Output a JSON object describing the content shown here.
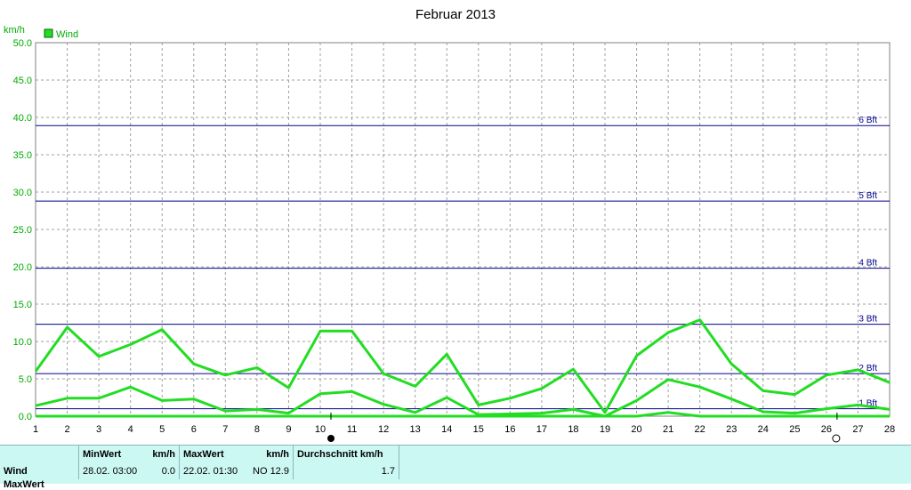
{
  "chart_data": {
    "type": "line",
    "title": "Februar 2013",
    "ylabel": "km/h",
    "ylim": [
      0,
      50
    ],
    "xlim": [
      1,
      28
    ],
    "y_ticks": [
      "0.0",
      "5.0",
      "10.0",
      "15.0",
      "20.0",
      "25.0",
      "30.0",
      "35.0",
      "40.0",
      "45.0",
      "50.0"
    ],
    "x_ticks": [
      "1",
      "2",
      "3",
      "4",
      "5",
      "6",
      "7",
      "8",
      "9",
      "10",
      "11",
      "12",
      "13",
      "14",
      "15",
      "16",
      "17",
      "18",
      "19",
      "20",
      "21",
      "22",
      "23",
      "24",
      "25",
      "26",
      "27",
      "28"
    ],
    "grid": true,
    "legend": {
      "position": "top-left",
      "entries": [
        "Wind"
      ]
    },
    "beaufort_lines": [
      {
        "label": "1 Bft",
        "value": 1.0
      },
      {
        "label": "2 Bft",
        "value": 5.7
      },
      {
        "label": "3 Bft",
        "value": 12.3
      },
      {
        "label": "4 Bft",
        "value": 19.8
      },
      {
        "label": "5 Bft",
        "value": 28.8
      },
      {
        "label": "6 Bft",
        "value": 38.9
      }
    ],
    "series": [
      {
        "role": "max",
        "x": [
          1,
          2,
          3,
          4,
          5,
          6,
          7,
          8,
          9,
          10,
          11,
          12,
          13,
          14,
          15,
          16,
          17,
          18,
          19,
          20,
          21,
          22,
          23,
          24,
          25,
          26,
          27,
          28
        ],
        "values": [
          6.0,
          11.9,
          8.0,
          9.6,
          11.6,
          7.0,
          5.5,
          6.5,
          3.8,
          11.4,
          11.4,
          5.7,
          4.0,
          8.3,
          1.5,
          2.4,
          3.7,
          6.3,
          0.5,
          8.1,
          11.2,
          12.9,
          7.0,
          3.4,
          2.9,
          5.5,
          6.2,
          4.5
        ]
      },
      {
        "role": "avg",
        "x": [
          1,
          2,
          3,
          4,
          5,
          6,
          7,
          8,
          9,
          10,
          11,
          12,
          13,
          14,
          15,
          16,
          17,
          18,
          19,
          20,
          21,
          22,
          23,
          24,
          25,
          26,
          27,
          28
        ],
        "values": [
          1.4,
          2.4,
          2.4,
          3.9,
          2.1,
          2.3,
          0.7,
          0.9,
          0.4,
          3.0,
          3.3,
          1.6,
          0.5,
          2.5,
          0.2,
          0.3,
          0.4,
          0.9,
          0.0,
          2.1,
          4.9,
          3.9,
          2.3,
          0.6,
          0.4,
          1.0,
          1.5,
          0.9
        ]
      },
      {
        "role": "min",
        "x": [
          1,
          2,
          3,
          4,
          5,
          6,
          7,
          8,
          9,
          10,
          11,
          12,
          13,
          14,
          15,
          16,
          17,
          18,
          19,
          20,
          21,
          22,
          23,
          24,
          25,
          26,
          27,
          28
        ],
        "values": [
          0,
          0,
          0,
          0,
          0,
          0,
          0,
          0,
          0,
          0,
          0,
          0,
          0,
          0,
          0,
          0,
          0,
          0,
          0,
          0,
          0.5,
          0,
          0,
          0,
          0,
          0,
          0,
          0
        ]
      }
    ],
    "moon_markers": [
      {
        "day": 10,
        "phase": "new-moon"
      },
      {
        "day": 26,
        "phase": "full-moon"
      }
    ]
  },
  "colors": {
    "series": "#22dd22",
    "ytick": "#00aa00",
    "beaufort": "#00008b",
    "grid": "#a0a0a0"
  },
  "stats": {
    "headers": {
      "min": "MinWert",
      "min_unit": "km/h",
      "max": "MaxWert",
      "max_unit": "km/h",
      "avg": "Durchschnitt km/h"
    },
    "rows": [
      {
        "label": "Wind",
        "min_time": "28.02.  03:00",
        "min_value": "0.0",
        "max_time": "22.02.  01:30",
        "max_dir": "NO",
        "max_value": "12.9",
        "avg": "1.7"
      }
    ],
    "cut_row_label": "MaxWert"
  }
}
